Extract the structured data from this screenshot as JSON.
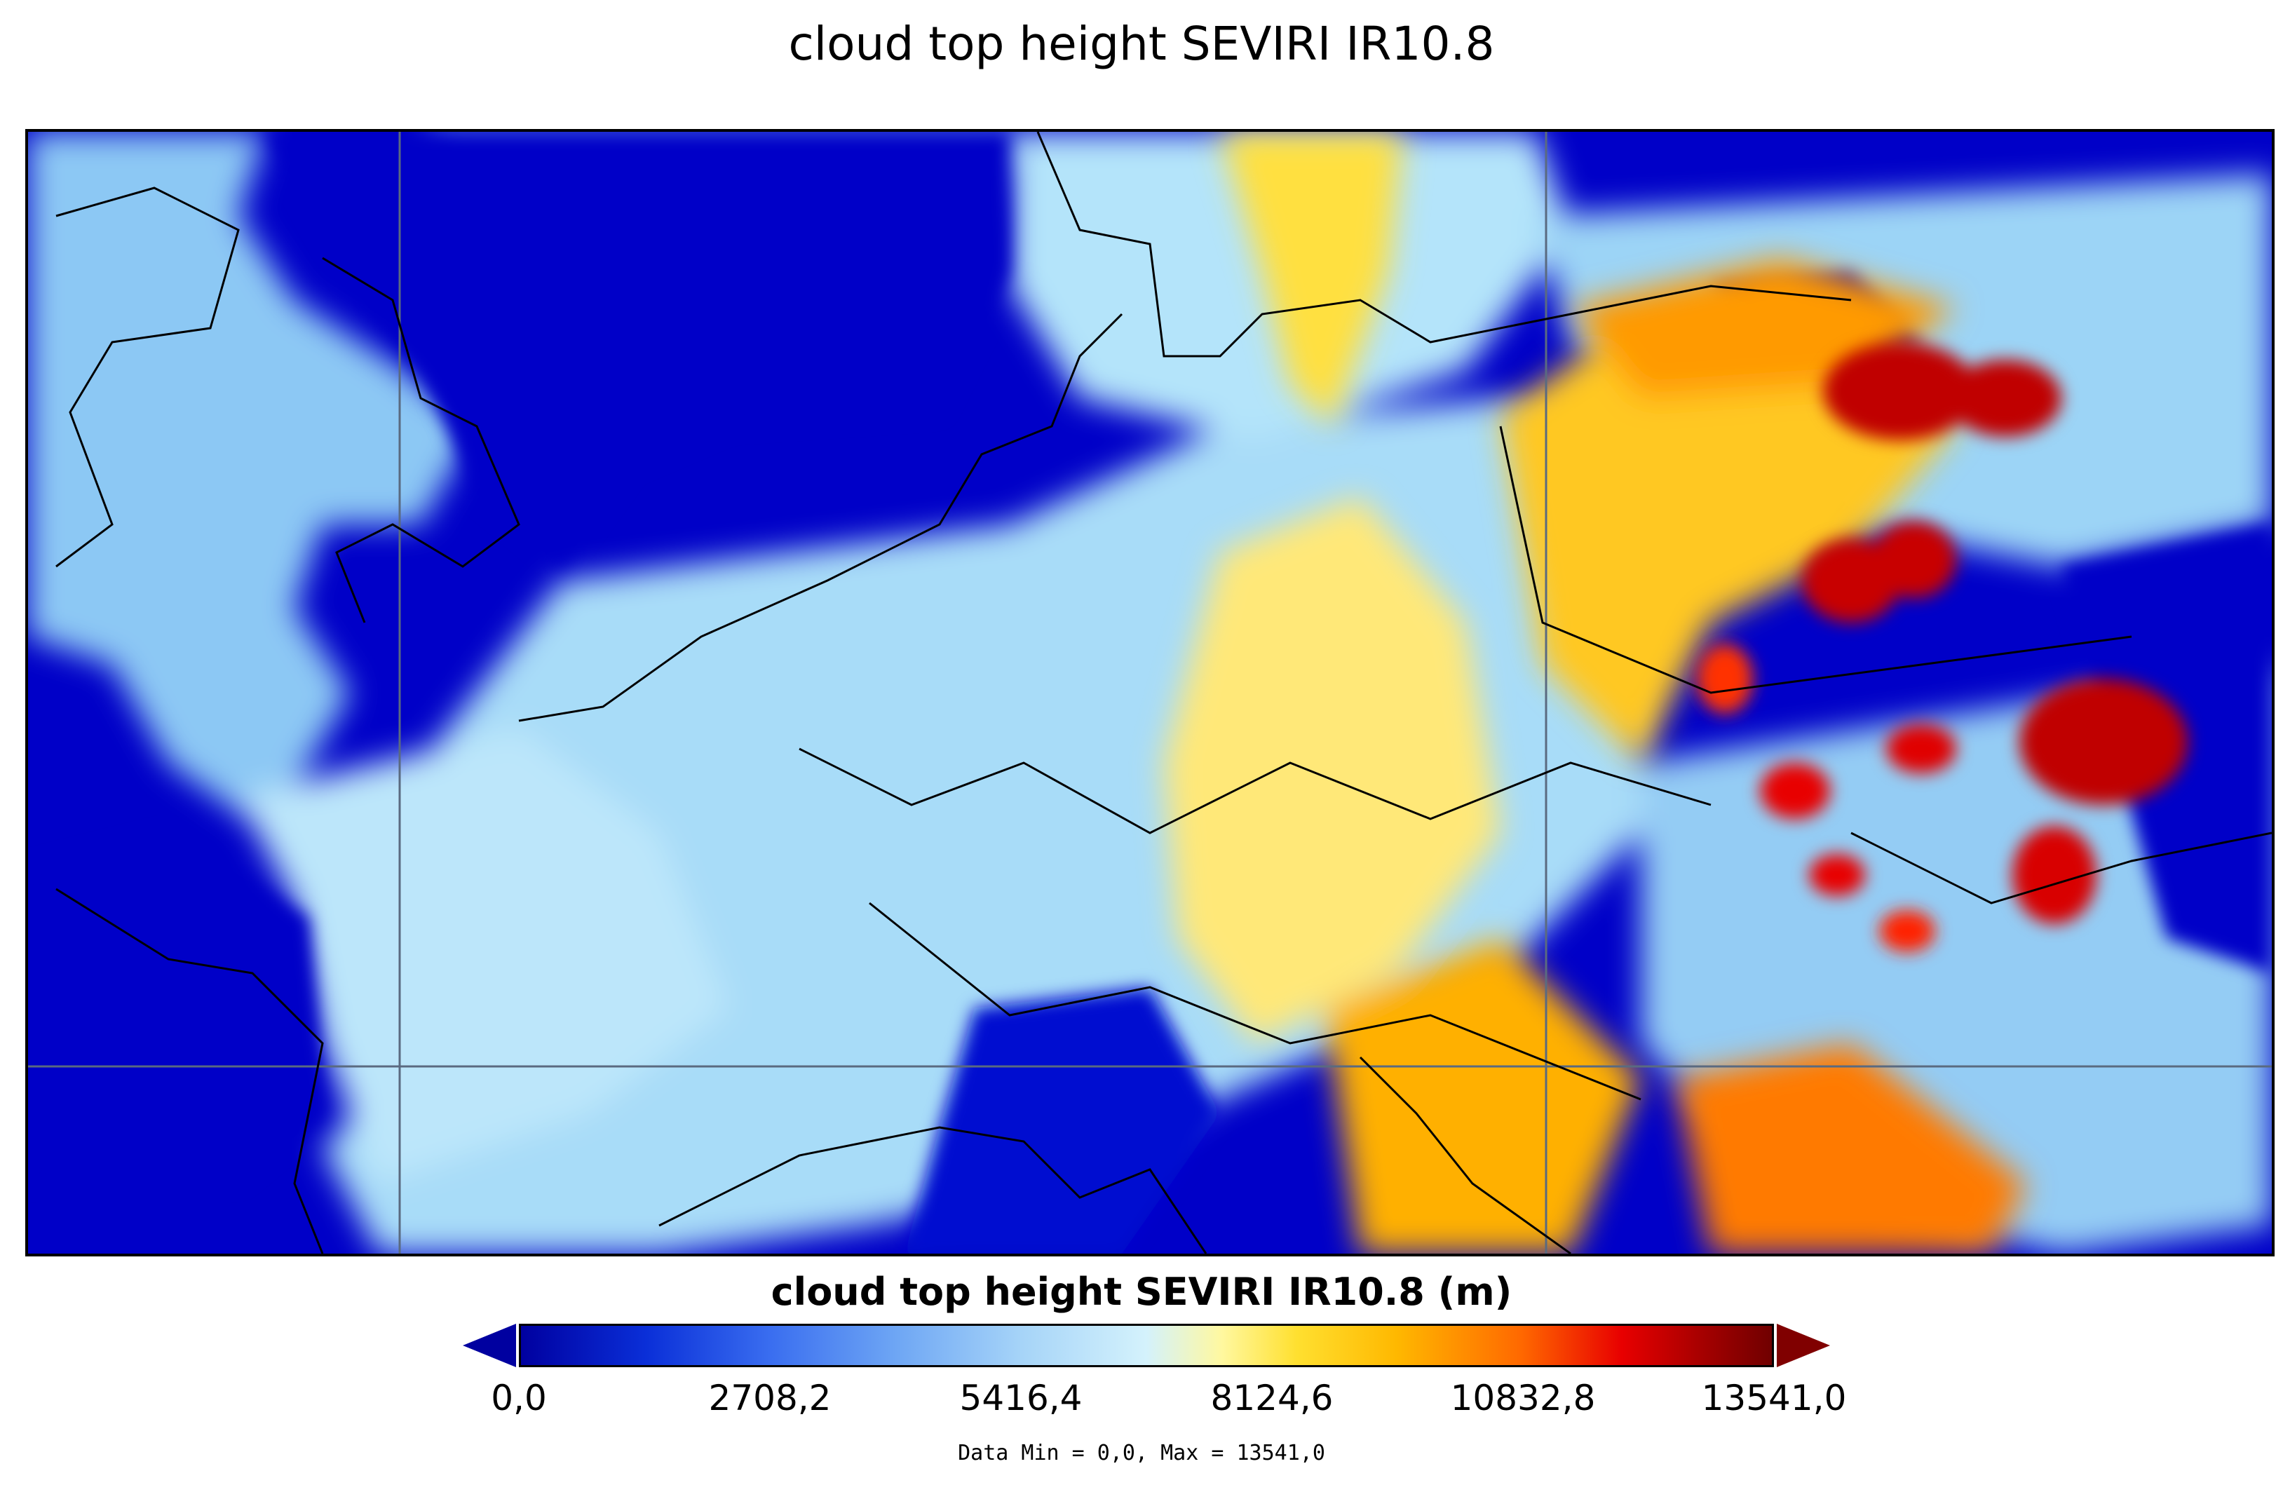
{
  "title": "cloud top height SEVIRI IR10.8",
  "colorbar": {
    "title": "cloud top height SEVIRI IR10.8 (m)",
    "ticks": [
      "0,0",
      "2708,2",
      "5416,4",
      "8124,6",
      "10832,8",
      "13541,0"
    ],
    "min": 0,
    "max": 13541,
    "colors": [
      "#0000a0",
      "#3a6ef0",
      "#a6d4f8",
      "#ffe030",
      "#ff6800",
      "#a00000"
    ]
  },
  "stats": "Data Min = 0,0, Max = 13541,0"
}
